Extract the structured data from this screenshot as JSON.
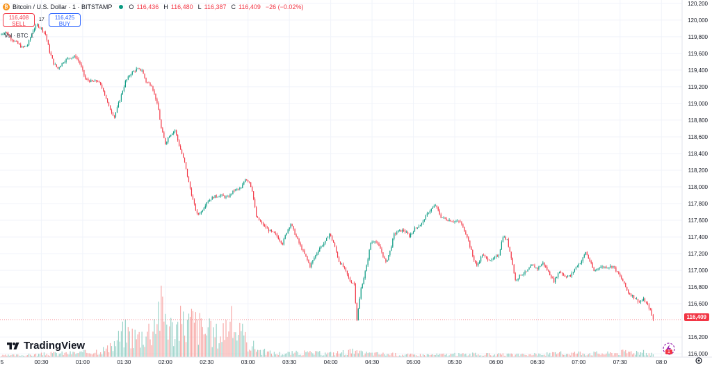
{
  "header": {
    "symbol_title": "Bitcoin / U.S. Dollar · 1 · BITSTAMP",
    "logo_glyph": "₿",
    "ohlc": [
      {
        "key": "O",
        "value": "116,436"
      },
      {
        "key": "H",
        "value": "116,480"
      },
      {
        "key": "L",
        "value": "116,387"
      },
      {
        "key": "C",
        "value": "116,409"
      }
    ],
    "change": "−26 (−0.02%)"
  },
  "trade": {
    "sell_price": "116,408",
    "sell_label": "SELL",
    "spread": "17",
    "buy_price": "116,425",
    "buy_label": "BUY"
  },
  "volume_legend": {
    "label": "Vol · BTC",
    "value": "1"
  },
  "watermark": {
    "text": "TradingView"
  },
  "current_price_label": "116,409",
  "assistant_badge": "1",
  "colors": {
    "up": "#089981",
    "down": "#f23645",
    "up_volume": "#9bd3c9",
    "down_volume": "#f7a9a7",
    "grid": "#f0f3fa",
    "text": "#131722"
  },
  "icons": {
    "logo": "bitcoin-logo-icon",
    "status": "market-open-dot-icon",
    "assistant": "lightning-assistant-icon",
    "settings": "chart-settings-icon"
  },
  "chart_data": {
    "type": "candlestick",
    "y_axis_ticks": [
      "120,200",
      "120,000",
      "119,800",
      "119,600",
      "119,400",
      "119,200",
      "119,000",
      "118,800",
      "118,600",
      "118,400",
      "118,200",
      "118,000",
      "117,800",
      "117,600",
      "117,400",
      "117,200",
      "117,000",
      "116,800",
      "116,600",
      "116,409",
      "116,200",
      "116,000"
    ],
    "y_range": [
      115960,
      120240
    ],
    "x_axis_ticks": [
      "5",
      "00:30",
      "01:00",
      "01:30",
      "02:00",
      "02:30",
      "03:00",
      "03:30",
      "04:00",
      "04:30",
      "05:00",
      "05:30",
      "06:00",
      "06:30",
      "07:00",
      "07:30",
      "08:0"
    ],
    "x_range_minutes": [
      0,
      495
    ],
    "price_path": [
      [
        0,
        119820
      ],
      [
        4,
        119860
      ],
      [
        8,
        119780
      ],
      [
        12,
        119730
      ],
      [
        16,
        119670
      ],
      [
        20,
        119700
      ],
      [
        24,
        119880
      ],
      [
        27,
        119940
      ],
      [
        30,
        119900
      ],
      [
        33,
        119830
      ],
      [
        36,
        119620
      ],
      [
        39,
        119480
      ],
      [
        42,
        119420
      ],
      [
        46,
        119500
      ],
      [
        50,
        119550
      ],
      [
        55,
        119560
      ],
      [
        58,
        119480
      ],
      [
        62,
        119290
      ],
      [
        67,
        119260
      ],
      [
        71,
        119270
      ],
      [
        75,
        119160
      ],
      [
        79,
        118960
      ],
      [
        83,
        118840
      ],
      [
        87,
        119050
      ],
      [
        91,
        119260
      ],
      [
        95,
        119360
      ],
      [
        99,
        119410
      ],
      [
        103,
        119400
      ],
      [
        106,
        119260
      ],
      [
        110,
        119220
      ],
      [
        113,
        119060
      ],
      [
        115,
        118920
      ],
      [
        117,
        118700
      ],
      [
        120,
        118520
      ],
      [
        123,
        118620
      ],
      [
        127,
        118680
      ],
      [
        130,
        118500
      ],
      [
        134,
        118290
      ],
      [
        137,
        118050
      ],
      [
        140,
        117840
      ],
      [
        143,
        117670
      ],
      [
        146,
        117700
      ],
      [
        150,
        117820
      ],
      [
        155,
        117880
      ],
      [
        160,
        117900
      ],
      [
        165,
        117870
      ],
      [
        170,
        117960
      ],
      [
        175,
        117980
      ],
      [
        178,
        118100
      ],
      [
        181,
        118060
      ],
      [
        183,
        117960
      ],
      [
        186,
        117640
      ],
      [
        190,
        117560
      ],
      [
        195,
        117480
      ],
      [
        200,
        117430
      ],
      [
        205,
        117320
      ],
      [
        208,
        117460
      ],
      [
        211,
        117560
      ],
      [
        214,
        117440
      ],
      [
        218,
        117290
      ],
      [
        222,
        117160
      ],
      [
        225,
        117050
      ],
      [
        228,
        117150
      ],
      [
        232,
        117270
      ],
      [
        236,
        117340
      ],
      [
        239,
        117440
      ],
      [
        242,
        117330
      ],
      [
        246,
        117110
      ],
      [
        250,
        117020
      ],
      [
        254,
        116870
      ],
      [
        257,
        116840
      ],
      [
        259,
        116410
      ],
      [
        262,
        116780
      ],
      [
        266,
        117050
      ],
      [
        269,
        117330
      ],
      [
        272,
        117360
      ],
      [
        276,
        117260
      ],
      [
        280,
        117090
      ],
      [
        283,
        117230
      ],
      [
        286,
        117430
      ],
      [
        289,
        117470
      ],
      [
        293,
        117480
      ],
      [
        297,
        117410
      ],
      [
        301,
        117500
      ],
      [
        306,
        117560
      ],
      [
        311,
        117700
      ],
      [
        316,
        117780
      ],
      [
        320,
        117640
      ],
      [
        324,
        117610
      ],
      [
        329,
        117590
      ],
      [
        334,
        117580
      ],
      [
        339,
        117410
      ],
      [
        343,
        117170
      ],
      [
        346,
        117050
      ],
      [
        350,
        117190
      ],
      [
        353,
        117140
      ],
      [
        357,
        117120
      ],
      [
        362,
        117190
      ],
      [
        365,
        117410
      ],
      [
        368,
        117360
      ],
      [
        371,
        117160
      ],
      [
        374,
        116880
      ],
      [
        378,
        116950
      ],
      [
        382,
        116980
      ],
      [
        386,
        117060
      ],
      [
        390,
        117020
      ],
      [
        394,
        117090
      ],
      [
        398,
        116980
      ],
      [
        402,
        116870
      ],
      [
        406,
        116990
      ],
      [
        410,
        116930
      ],
      [
        414,
        116930
      ],
      [
        418,
        117040
      ],
      [
        422,
        117110
      ],
      [
        425,
        117220
      ],
      [
        428,
        117110
      ],
      [
        431,
        116990
      ],
      [
        435,
        117040
      ],
      [
        440,
        117040
      ],
      [
        445,
        117050
      ],
      [
        449,
        116950
      ],
      [
        452,
        116870
      ],
      [
        456,
        116730
      ],
      [
        460,
        116680
      ],
      [
        464,
        116620
      ],
      [
        467,
        116650
      ],
      [
        470,
        116580
      ],
      [
        472,
        116520
      ],
      [
        474,
        116409
      ]
    ],
    "volume_profile": [
      [
        0,
        0.02
      ],
      [
        20,
        0.03
      ],
      [
        40,
        0.05
      ],
      [
        60,
        0.06
      ],
      [
        80,
        0.12
      ],
      [
        90,
        0.35
      ],
      [
        100,
        0.28
      ],
      [
        110,
        0.4
      ],
      [
        115,
        0.7
      ],
      [
        120,
        0.6
      ],
      [
        125,
        0.38
      ],
      [
        130,
        0.45
      ],
      [
        140,
        0.5
      ],
      [
        150,
        0.35
      ],
      [
        160,
        0.3
      ],
      [
        165,
        0.5
      ],
      [
        170,
        0.42
      ],
      [
        180,
        0.2
      ],
      [
        190,
        0.08
      ],
      [
        200,
        0.05
      ],
      [
        220,
        0.06
      ],
      [
        240,
        0.05
      ],
      [
        255,
        0.08
      ],
      [
        260,
        0.06
      ],
      [
        270,
        0.05
      ],
      [
        300,
        0.03
      ],
      [
        340,
        0.04
      ],
      [
        380,
        0.03
      ],
      [
        420,
        0.06
      ],
      [
        440,
        0.05
      ],
      [
        460,
        0.08
      ],
      [
        475,
        0.04
      ]
    ]
  }
}
